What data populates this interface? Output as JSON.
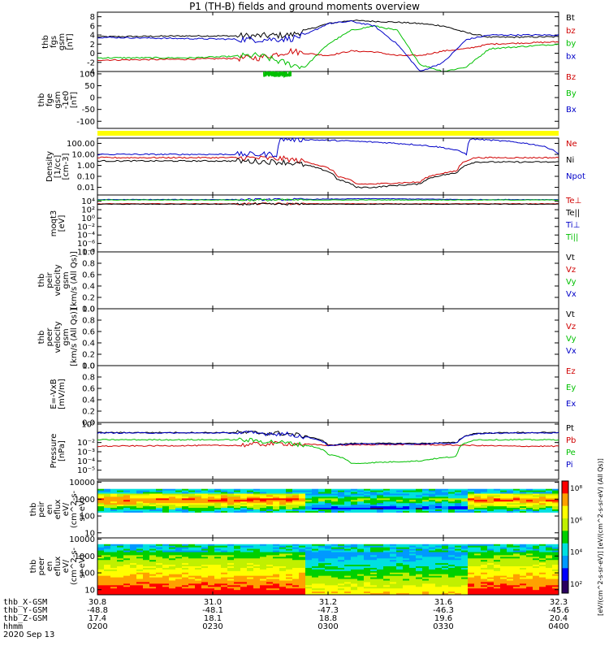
{
  "title": "P1 (TH-B) fields and ground moments overview",
  "colors": {
    "black": "#000000",
    "red": "#d00000",
    "green": "#00c000",
    "blue": "#0000c8",
    "yellow": "#ffff00"
  },
  "chart_data": [
    {
      "type": "line",
      "panel": "fgs_gsm",
      "ylabel_lines": [
        "thb",
        "fgs",
        "gsm",
        "[nT]"
      ],
      "ylim": [
        -4,
        9
      ],
      "yticks": [
        -4,
        -2,
        0,
        2,
        4,
        6,
        8
      ],
      "series": [
        {
          "name": "Bt",
          "color": "#000000",
          "x": [
            0,
            0.2,
            0.35,
            0.42,
            0.45,
            0.5,
            0.55,
            0.6,
            0.65,
            0.7,
            0.75,
            0.8,
            0.85,
            1.0
          ],
          "y": [
            3.6,
            3.8,
            3.8,
            4.0,
            5.0,
            6.5,
            7.2,
            7.0,
            6.8,
            6.5,
            6.0,
            4.5,
            3.5,
            3.6
          ]
        },
        {
          "name": "bz",
          "color": "#d00000",
          "x": [
            0,
            0.2,
            0.35,
            0.42,
            0.45,
            0.5,
            0.55,
            0.6,
            0.65,
            0.7,
            0.75,
            0.8,
            0.85,
            1.0
          ],
          "y": [
            -1.5,
            -1.3,
            -1.0,
            0.5,
            0.0,
            -0.5,
            0.5,
            0.3,
            -0.5,
            -0.5,
            0.5,
            1.0,
            2.0,
            2.5
          ]
        },
        {
          "name": "by",
          "color": "#00c000",
          "x": [
            0,
            0.2,
            0.35,
            0.42,
            0.45,
            0.5,
            0.55,
            0.6,
            0.65,
            0.7,
            0.75,
            0.8,
            0.85,
            1.0
          ],
          "y": [
            -1.0,
            -1.0,
            -0.5,
            -2.5,
            -3.0,
            2.0,
            5.0,
            6.0,
            5.0,
            -2.5,
            -4.0,
            -3.0,
            1.0,
            2.0
          ]
        },
        {
          "name": "bx",
          "color": "#0000c8",
          "x": [
            0,
            0.2,
            0.35,
            0.42,
            0.45,
            0.5,
            0.55,
            0.6,
            0.65,
            0.7,
            0.75,
            0.8,
            0.85,
            1.0
          ],
          "y": [
            3.5,
            3.2,
            3.0,
            3.2,
            4.0,
            6.5,
            7.0,
            6.0,
            2.0,
            -4.0,
            -2.0,
            3.0,
            4.0,
            4.0
          ]
        }
      ]
    },
    {
      "type": "line",
      "panel": "fge_gsm",
      "ylabel_lines": [
        "thb",
        "fge",
        "gsm",
        "-1e0",
        "[nT]"
      ],
      "ylim": [
        -130,
        110
      ],
      "yticks": [
        -100,
        -50,
        0,
        50,
        100
      ],
      "series": [
        {
          "name": "Bz",
          "color": "#d00000",
          "x": [],
          "y": []
        },
        {
          "name": "By",
          "color": "#00c000",
          "x": [
            0.36,
            0.42
          ],
          "y": [
            100,
            100
          ]
        },
        {
          "name": "Bx",
          "color": "#0000c8",
          "x": [],
          "y": []
        }
      ]
    },
    {
      "type": "line",
      "panel": "density",
      "ylabel_lines": [
        "Density",
        "[1/cc]",
        "[cm-3]"
      ],
      "log": true,
      "ylim": [
        0.002,
        300
      ],
      "ytick_labels": [
        "100.00",
        "10.00",
        "1.00",
        "0.10",
        "0.01"
      ],
      "yticks": [
        100,
        10,
        1,
        0.1,
        0.01
      ],
      "series": [
        {
          "name": "Ne",
          "color": "#d00000",
          "x": [
            0,
            0.3,
            0.4,
            0.48,
            0.52,
            0.56,
            0.6,
            0.7,
            0.78,
            0.82,
            0.9,
            1.0
          ],
          "y": [
            5,
            5,
            4,
            1,
            0.1,
            0.02,
            0.02,
            0.03,
            0.3,
            5,
            5,
            5
          ]
        },
        {
          "name": "Ni",
          "color": "#000000",
          "x": [
            0,
            0.3,
            0.4,
            0.48,
            0.52,
            0.56,
            0.6,
            0.7,
            0.78,
            0.82,
            0.9,
            1.0
          ],
          "y": [
            2.5,
            2.5,
            2,
            0.5,
            0.05,
            0.01,
            0.01,
            0.02,
            0.2,
            2,
            2,
            2
          ]
        },
        {
          "name": "Npot",
          "color": "#0000c8",
          "x": [
            0,
            0.3,
            0.39,
            0.4,
            0.8,
            0.81,
            1.0
          ],
          "y": [
            10,
            10,
            10,
            250,
            10,
            250,
            10
          ]
        }
      ]
    },
    {
      "type": "line",
      "panel": "moqt3",
      "ylabel_lines": [
        "moqt3",
        "[eV]"
      ],
      "log": true,
      "ylim": [
        1e-08,
        300000.0
      ],
      "ytick_labels": [
        "10⁴",
        "10²",
        "10⁰",
        "10⁻²",
        "10⁻⁴",
        "10⁻⁶",
        "10⁻⁸"
      ],
      "yticks": [
        10000.0,
        100.0,
        1,
        0.01,
        0.0001,
        1e-06,
        1e-08
      ],
      "series": [
        {
          "name": "Te⊥",
          "color": "#d00000",
          "x": [
            0,
            1
          ],
          "y": [
            2500,
            2500
          ]
        },
        {
          "name": "Te||",
          "color": "#000000",
          "x": [
            0,
            1
          ],
          "y": [
            2000,
            2000
          ]
        },
        {
          "name": "Ti⊥",
          "color": "#0000c8",
          "x": [
            0,
            0.4,
            0.6,
            0.8,
            1.0
          ],
          "y": [
            25000,
            25000,
            40000,
            25000,
            25000
          ]
        },
        {
          "name": "Ti||",
          "color": "#00c000",
          "x": [
            0,
            1
          ],
          "y": [
            20000,
            20000
          ]
        }
      ]
    },
    {
      "type": "line",
      "panel": "peir_velocity",
      "ylabel_lines": [
        "thb",
        "peir",
        "velocity",
        "gsm",
        "[km/s (All Qs)]"
      ],
      "ylim": [
        0,
        1
      ],
      "yticks": [
        0,
        0.2,
        0.4,
        0.6,
        0.8,
        1.0
      ],
      "ytick_labels": [
        "0.0",
        "0.2",
        "0.4",
        "0.6",
        "0.8",
        "1.0"
      ],
      "series": [
        {
          "name": "Vt",
          "color": "#000000"
        },
        {
          "name": "Vz",
          "color": "#d00000"
        },
        {
          "name": "Vy",
          "color": "#00c000"
        },
        {
          "name": "Vx",
          "color": "#0000c8"
        }
      ]
    },
    {
      "type": "line",
      "panel": "peer_velocity",
      "ylabel_lines": [
        "thb",
        "peer",
        "velocity",
        "gsm",
        "[km/s (All Qs)]"
      ],
      "ylim": [
        0,
        1
      ],
      "yticks": [
        0,
        0.2,
        0.4,
        0.6,
        0.8,
        1.0
      ],
      "ytick_labels": [
        "0.0",
        "0.2",
        "0.4",
        "0.6",
        "0.8",
        "1.0"
      ],
      "series": [
        {
          "name": "Vt",
          "color": "#000000"
        },
        {
          "name": "Vz",
          "color": "#d00000"
        },
        {
          "name": "Vy",
          "color": "#00c000"
        },
        {
          "name": "Vx",
          "color": "#0000c8"
        }
      ]
    },
    {
      "type": "line",
      "panel": "efield",
      "ylabel_lines": [
        "E=-VxB",
        "[mV/m]"
      ],
      "ylim": [
        0,
        1
      ],
      "yticks": [
        0,
        0.2,
        0.4,
        0.6,
        0.8,
        1.0
      ],
      "ytick_labels": [
        "0.0",
        "0.2",
        "0.4",
        "0.6",
        "0.8",
        "1.0"
      ],
      "series": [
        {
          "name": "Ez",
          "color": "#d00000"
        },
        {
          "name": "Ey",
          "color": "#00c000"
        },
        {
          "name": "Ex",
          "color": "#0000c8"
        }
      ]
    },
    {
      "type": "line",
      "panel": "pressure",
      "ylabel_lines": [
        "Pressure",
        "[nPa]"
      ],
      "log": true,
      "ylim": [
        1e-06,
        1.5
      ],
      "ytick_labels": [
        "10⁰",
        "10⁻²",
        "10⁻³",
        "10⁻⁴",
        "10⁻⁵"
      ],
      "yticks": [
        1,
        0.01,
        0.001,
        0.0001,
        1e-05
      ],
      "series": [
        {
          "name": "Pt",
          "color": "#000000",
          "x": [
            0,
            0.3,
            0.4,
            0.45,
            0.5,
            0.55,
            0.7,
            0.78,
            0.82,
            0.9,
            1.0
          ],
          "y": [
            0.12,
            0.12,
            0.1,
            0.05,
            0.005,
            0.008,
            0.008,
            0.01,
            0.1,
            0.12,
            0.12
          ]
        },
        {
          "name": "Pb",
          "color": "#d00000",
          "x": [
            0,
            0.3,
            0.4,
            0.5,
            0.6,
            0.7,
            0.8,
            0.9,
            1.0
          ],
          "y": [
            0.004,
            0.005,
            0.008,
            0.005,
            0.006,
            0.006,
            0.005,
            0.004,
            0.004
          ]
        },
        {
          "name": "Pe",
          "color": "#00c000",
          "x": [
            0,
            0.3,
            0.4,
            0.5,
            0.55,
            0.7,
            0.78,
            0.82,
            0.9,
            1.0
          ],
          "y": [
            0.02,
            0.02,
            0.01,
            0.0005,
            5e-05,
            0.0001,
            0.0003,
            0.02,
            0.02,
            0.02
          ]
        },
        {
          "name": "Pi",
          "color": "#0000c8",
          "x": [
            0,
            0.3,
            0.4,
            0.45,
            0.5,
            0.55,
            0.7,
            0.78,
            0.82,
            0.9,
            1.0
          ],
          "y": [
            0.11,
            0.11,
            0.09,
            0.04,
            0.004,
            0.007,
            0.007,
            0.009,
            0.09,
            0.11,
            0.11
          ]
        }
      ]
    },
    {
      "type": "heatmap",
      "panel": "peir_en_eflux",
      "ylabel_lines": [
        "thb",
        "peir",
        "en",
        "eflux",
        "eV/",
        "(cm^2-s-",
        "sr-eV)"
      ],
      "log": true,
      "ylim": [
        5,
        12000
      ],
      "yticks": [
        10000,
        1000,
        100,
        10
      ],
      "ytick_labels": [
        "10000",
        "1000",
        "100",
        "10"
      ]
    },
    {
      "type": "heatmap",
      "panel": "peer_en_eflux",
      "ylabel_lines": [
        "thb",
        "peer",
        "en",
        "eflux",
        "eV/",
        "(cm^2-s-",
        "sr-eV)"
      ],
      "log": true,
      "ylim": [
        5,
        12000
      ],
      "yticks": [
        10000,
        1000,
        100,
        10
      ],
      "ytick_labels": [
        "10000",
        "1000",
        "100",
        "10"
      ]
    }
  ],
  "colorbar": {
    "tick_labels": [
      "10⁸",
      "10⁶",
      "10⁴",
      "10²"
    ],
    "label": "[eV/(cm^2-s-sr-eV)] [eV/(cm^2-s-sr-eV) (All Qs)]"
  },
  "x_axis": {
    "rows": [
      {
        "name": "thb_X-GSM",
        "values": [
          "30.8",
          "31.0",
          "31.2",
          "31.6",
          "32.3"
        ]
      },
      {
        "name": "thb_Y-GSM",
        "values": [
          "-48.8",
          "-48.1",
          "-47.3",
          "-46.3",
          "-45.6"
        ]
      },
      {
        "name": "thb_Z-GSM",
        "values": [
          "17.4",
          "18.1",
          "18.8",
          "19.6",
          "20.4"
        ]
      },
      {
        "name": "hhmm",
        "values": [
          "0200",
          "0230",
          "0300",
          "0330",
          "0400"
        ]
      }
    ],
    "date": "2020 Sep 13"
  }
}
